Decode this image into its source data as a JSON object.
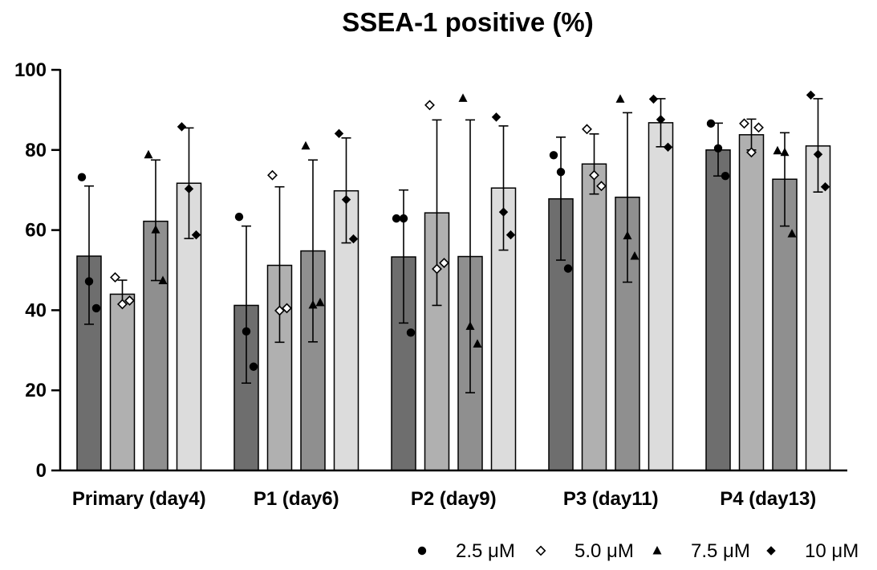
{
  "chart_data": {
    "type": "bar",
    "title": "SSEA-1 positive (%)",
    "xlabel": "",
    "ylabel": "",
    "ylim": [
      0,
      100
    ],
    "yticks": [
      0,
      20,
      40,
      60,
      80,
      100
    ],
    "grid": false,
    "legend_position": "bottom-right",
    "categories": [
      "Primary (day4)",
      "P1 (day6)",
      "P2 (day9)",
      "P3 (day11)",
      "P4 (day13)"
    ],
    "series": [
      {
        "name": "2.5 μM",
        "marker": "circle",
        "marker_glyph": "●",
        "color": "#6e6e6e",
        "values": [
          53.5,
          41.2,
          53.3,
          67.8,
          80.0
        ],
        "error_low": [
          36.5,
          21.8,
          36.8,
          52.5,
          73.5
        ],
        "error_high": [
          71.0,
          61.0,
          70.0,
          83.2,
          86.7
        ],
        "points": [
          [
            73.2,
            47.2,
            40.5
          ],
          [
            63.3,
            34.7,
            25.9
          ],
          [
            62.9,
            62.9,
            34.4
          ],
          [
            78.7,
            74.5,
            50.4
          ],
          [
            86.6,
            80.4,
            73.5
          ]
        ]
      },
      {
        "name": "5.0 μM",
        "marker": "diamond-open",
        "marker_glyph": "◇",
        "color": "#b0b0b0",
        "values": [
          44.0,
          51.2,
          64.3,
          76.5,
          83.8
        ],
        "error_low": [
          41.5,
          32.0,
          41.2,
          69.0,
          80.0
        ],
        "error_high": [
          47.5,
          70.8,
          87.5,
          84.0,
          87.7
        ],
        "points": [
          [
            48.2,
            41.5,
            42.4
          ],
          [
            73.7,
            39.9,
            40.5
          ],
          [
            91.2,
            50.3,
            51.8
          ],
          [
            85.2,
            73.7,
            71.0
          ],
          [
            86.6,
            79.4,
            85.6
          ]
        ]
      },
      {
        "name": "7.5 μM",
        "marker": "triangle",
        "marker_glyph": "▲",
        "color": "#8f8f8f",
        "values": [
          62.2,
          54.8,
          53.4,
          68.2,
          72.7
        ],
        "error_low": [
          47.4,
          32.1,
          19.4,
          47.0,
          61.0
        ],
        "error_high": [
          77.5,
          77.5,
          87.5,
          89.3,
          84.3
        ],
        "points": [
          [
            78.8,
            60.1,
            47.4
          ],
          [
            81.0,
            41.3,
            41.9
          ],
          [
            92.9,
            36.0,
            31.6
          ],
          [
            92.7,
            58.6,
            53.5
          ],
          [
            79.8,
            79.4,
            59.1
          ]
        ]
      },
      {
        "name": "10 μM",
        "marker": "diamond",
        "marker_glyph": "◆",
        "color": "#dcdcdc",
        "values": [
          71.7,
          69.8,
          70.5,
          86.8,
          81.0
        ],
        "error_low": [
          57.9,
          56.8,
          55.0,
          80.8,
          69.5
        ],
        "error_high": [
          85.5,
          83.0,
          86.0,
          92.8,
          92.8
        ],
        "points": [
          [
            85.8,
            70.3,
            58.8
          ],
          [
            84.1,
            67.6,
            57.8
          ],
          [
            88.2,
            64.5,
            58.8
          ],
          [
            92.7,
            87.6,
            80.7
          ],
          [
            93.7,
            78.9,
            70.8
          ]
        ]
      }
    ]
  }
}
